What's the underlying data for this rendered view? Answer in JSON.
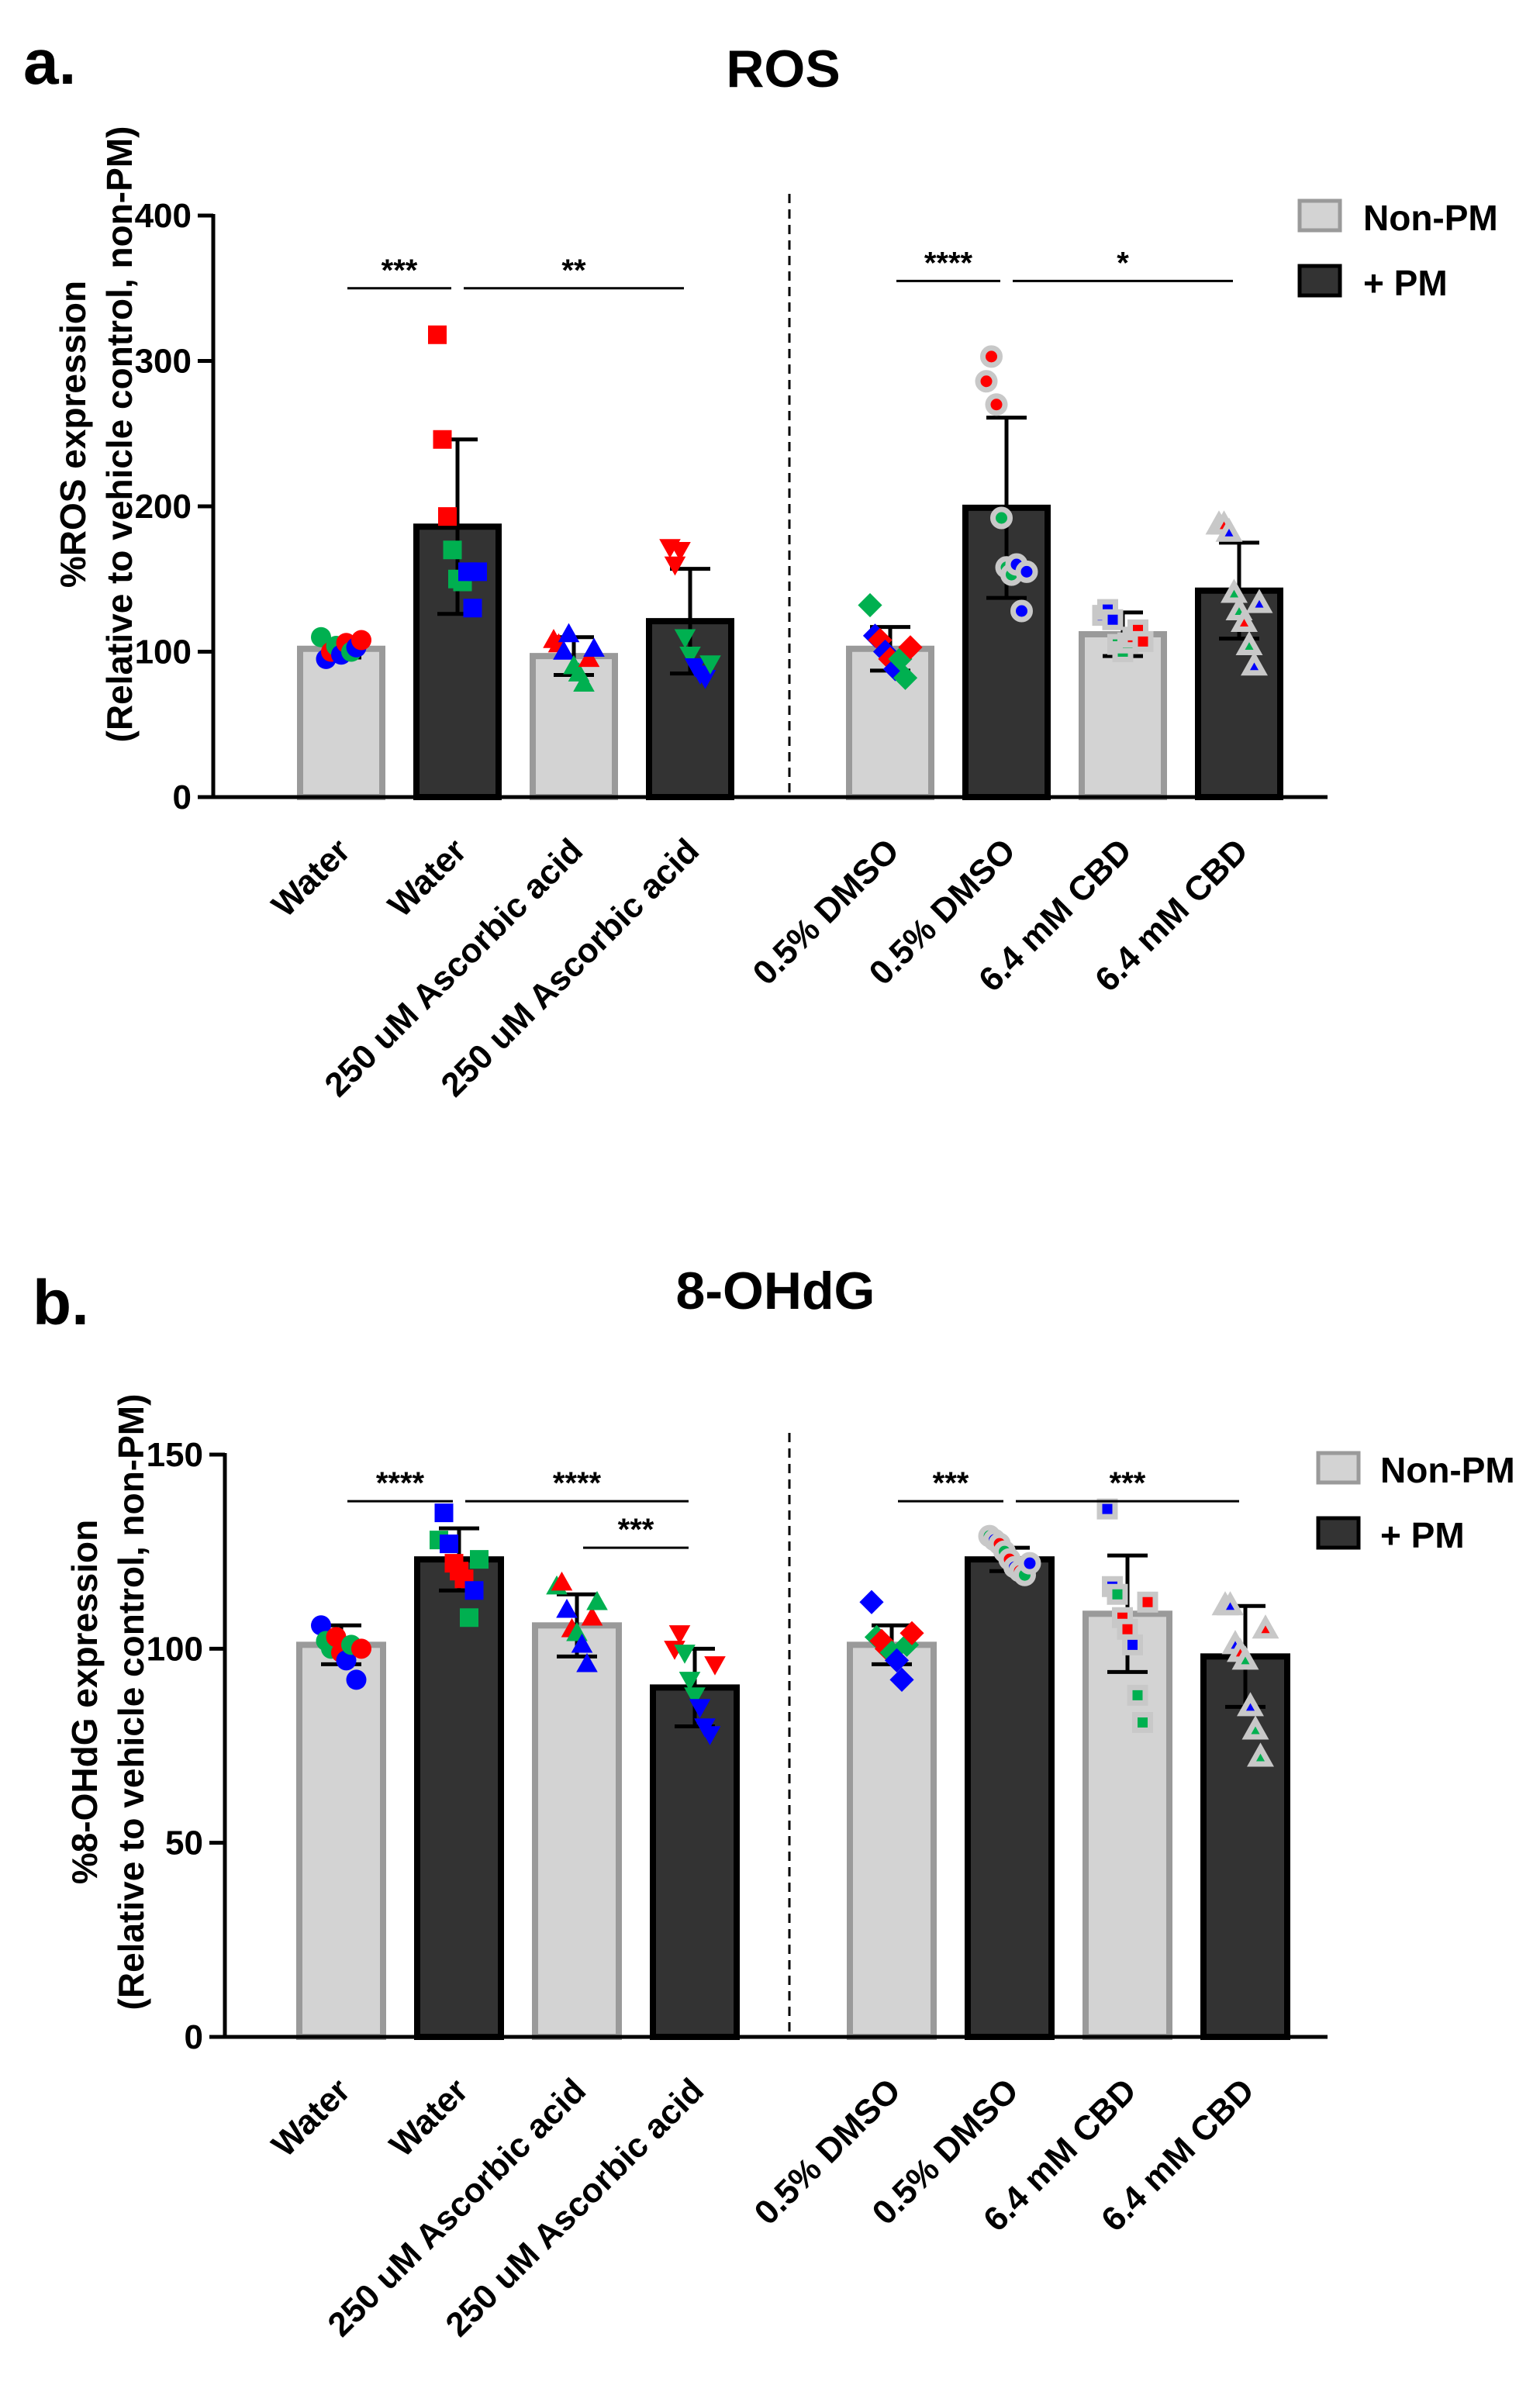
{
  "chart_data": [
    {
      "type": "bar",
      "panel_letter": "a.",
      "title": "ROS",
      "ylabel_line1": "%ROS expression",
      "ylabel_line2": "(Relative to vehicle control, non-PM)",
      "ylim": [
        0,
        400
      ],
      "yticks": [
        0,
        100,
        200,
        300,
        400
      ],
      "categories": [
        "Water",
        "Water",
        "250 uM Ascorbic acid",
        "250 uM Ascorbic acid",
        "0.5% DMSO",
        "0.5% DMSO",
        "6.4 mM CBD",
        "6.4 mM CBD"
      ],
      "groups": [
        "Non-PM",
        "+ PM",
        "Non-PM",
        "+ PM",
        "Non-PM",
        "+ PM",
        "Non-PM",
        "+ PM"
      ],
      "values": [
        102,
        186,
        97,
        121,
        102,
        199,
        112,
        142
      ],
      "errors": [
        6,
        60,
        13,
        36,
        15,
        62,
        15,
        33
      ],
      "points": [
        {
          "shape": "circle",
          "style": "plain",
          "pts": [
            [
              110,
              "#00b050"
            ],
            [
              95,
              "#0000ff"
            ],
            [
              100,
              "#ff0000"
            ],
            [
              104,
              "#00b050"
            ],
            [
              98,
              "#0000ff"
            ],
            [
              106,
              "#ff0000"
            ],
            [
              100,
              "#00b050"
            ],
            [
              103,
              "#0000ff"
            ],
            [
              108,
              "#ff0000"
            ]
          ]
        },
        {
          "shape": "square",
          "style": "plain",
          "pts": [
            [
              318,
              "#ff0000"
            ],
            [
              246,
              "#ff0000"
            ],
            [
              193,
              "#ff0000"
            ],
            [
              170,
              "#00b050"
            ],
            [
              150,
              "#00b050"
            ],
            [
              148,
              "#00b050"
            ],
            [
              155,
              "#0000ff"
            ],
            [
              130,
              "#0000ff"
            ],
            [
              155,
              "#0000ff"
            ]
          ]
        },
        {
          "shape": "triangle-up",
          "style": "plain",
          "pts": [
            [
              108,
              "#ff0000"
            ],
            [
              105,
              "#ff0000"
            ],
            [
              100,
              "#0000ff"
            ],
            [
              112,
              "#0000ff"
            ],
            [
              90,
              "#00b050"
            ],
            [
              85,
              "#00b050"
            ],
            [
              78,
              "#00b050"
            ],
            [
              95,
              "#ff0000"
            ],
            [
              102,
              "#0000ff"
            ]
          ]
        },
        {
          "shape": "triangle-down",
          "style": "plain",
          "pts": [
            [
              172,
              "#ff0000"
            ],
            [
              160,
              "#ff0000"
            ],
            [
              170,
              "#ff0000"
            ],
            [
              110,
              "#00b050"
            ],
            [
              98,
              "#00b050"
            ],
            [
              90,
              "#0000ff"
            ],
            [
              85,
              "#0000ff"
            ],
            [
              82,
              "#0000ff"
            ],
            [
              92,
              "#00b050"
            ]
          ]
        },
        {
          "shape": "diamond",
          "style": "plain",
          "pts": [
            [
              132,
              "#00b050"
            ],
            [
              111,
              "#0000ff"
            ],
            [
              108,
              "#ff0000"
            ],
            [
              100,
              "#0000ff"
            ],
            [
              95,
              "#ff0000"
            ],
            [
              88,
              "#0000ff"
            ],
            [
              95,
              "#00b050"
            ],
            [
              82,
              "#00b050"
            ],
            [
              103,
              "#ff0000"
            ]
          ]
        },
        {
          "shape": "circle",
          "style": "halo",
          "pts": [
            [
              286,
              "#ff0000"
            ],
            [
              303,
              "#ff0000"
            ],
            [
              270,
              "#ff0000"
            ],
            [
              192,
              "#00b050"
            ],
            [
              158,
              "#00b050"
            ],
            [
              153,
              "#00b050"
            ],
            [
              160,
              "#0000ff"
            ],
            [
              128,
              "#0000ff"
            ],
            [
              155,
              "#0000ff"
            ]
          ]
        },
        {
          "shape": "square",
          "style": "halo",
          "pts": [
            [
              125,
              "#0000ff"
            ],
            [
              129,
              "#0000ff"
            ],
            [
              122,
              "#0000ff"
            ],
            [
              105,
              "#00b050"
            ],
            [
              100,
              "#00b050"
            ],
            [
              106,
              "#00b050"
            ],
            [
              110,
              "#ff0000"
            ],
            [
              115,
              "#ff0000"
            ],
            [
              107,
              "#ff0000"
            ]
          ]
        },
        {
          "shape": "triangle-up",
          "style": "halo",
          "pts": [
            [
              187,
              "#ff0000"
            ],
            [
              187,
              "#ff0000"
            ],
            [
              182,
              "#0000ff"
            ],
            [
              140,
              "#00b050"
            ],
            [
              128,
              "#00b050"
            ],
            [
              120,
              "#ff0000"
            ],
            [
              104,
              "#00b050"
            ],
            [
              90,
              "#0000ff"
            ],
            [
              133,
              "#0000ff"
            ]
          ]
        }
      ],
      "significance": [
        {
          "from": 0,
          "to": 1,
          "label": "***",
          "y": 350
        },
        {
          "from": 1,
          "to": 3,
          "label": "**",
          "y": 350
        },
        {
          "from": 4,
          "to": 5,
          "label": "****",
          "y": 355
        },
        {
          "from": 5,
          "to": 7,
          "label": "*",
          "y": 355
        }
      ],
      "legend": [
        {
          "label": "Non-PM",
          "color": "#d3d3d3"
        },
        {
          "label": "+ PM",
          "color": "#333333"
        }
      ],
      "legend_position": "top-right"
    },
    {
      "type": "bar",
      "panel_letter": "b.",
      "title": "8-OHdG",
      "ylabel_line1": "%8-OHdG expression",
      "ylabel_line2": "(Relative to vehicle control, non-PM)",
      "ylim": [
        0,
        150
      ],
      "yticks": [
        0,
        50,
        100,
        150
      ],
      "categories": [
        "Water",
        "Water",
        "250 uM Ascorbic acid",
        "250 uM Ascorbic acid",
        "0.5% DMSO",
        "0.5% DMSO",
        "6.4 mM CBD",
        "6.4 mM CBD"
      ],
      "groups": [
        "Non-PM",
        "+ PM",
        "Non-PM",
        "+ PM",
        "Non-PM",
        "+ PM",
        "Non-PM",
        "+ PM"
      ],
      "values": [
        101,
        123,
        106,
        90,
        101,
        123,
        109,
        98
      ],
      "errors": [
        5,
        8,
        8,
        10,
        5,
        3,
        15,
        13
      ],
      "points": [
        {
          "shape": "circle",
          "style": "plain",
          "pts": [
            [
              106,
              "#0000ff"
            ],
            [
              102,
              "#00b050"
            ],
            [
              100,
              "#00b050"
            ],
            [
              103,
              "#ff0000"
            ],
            [
              99,
              "#ff0000"
            ],
            [
              97,
              "#0000ff"
            ],
            [
              101,
              "#00b050"
            ],
            [
              92,
              "#0000ff"
            ],
            [
              100,
              "#ff0000"
            ]
          ]
        },
        {
          "shape": "square",
          "style": "plain",
          "pts": [
            [
              128,
              "#00b050"
            ],
            [
              135,
              "#0000ff"
            ],
            [
              127,
              "#0000ff"
            ],
            [
              122,
              "#ff0000"
            ],
            [
              120,
              "#ff0000"
            ],
            [
              118,
              "#ff0000"
            ],
            [
              108,
              "#00b050"
            ],
            [
              115,
              "#0000ff"
            ],
            [
              123,
              "#00b050"
            ]
          ]
        },
        {
          "shape": "triangle-up",
          "style": "plain",
          "pts": [
            [
              116,
              "#00b050"
            ],
            [
              117,
              "#ff0000"
            ],
            [
              110,
              "#0000ff"
            ],
            [
              105,
              "#ff0000"
            ],
            [
              104,
              "#00b050"
            ],
            [
              101,
              "#0000ff"
            ],
            [
              96,
              "#0000ff"
            ],
            [
              108,
              "#ff0000"
            ],
            [
              112,
              "#00b050"
            ]
          ]
        },
        {
          "shape": "triangle-down",
          "style": "plain",
          "pts": [
            [
              100,
              "#ff0000"
            ],
            [
              104,
              "#ff0000"
            ],
            [
              99,
              "#00b050"
            ],
            [
              92,
              "#00b050"
            ],
            [
              88,
              "#00b050"
            ],
            [
              85,
              "#0000ff"
            ],
            [
              80,
              "#0000ff"
            ],
            [
              78,
              "#0000ff"
            ],
            [
              96,
              "#ff0000"
            ]
          ]
        },
        {
          "shape": "diamond",
          "style": "plain",
          "pts": [
            [
              112,
              "#0000ff"
            ],
            [
              103,
              "#00b050"
            ],
            [
              102,
              "#ff0000"
            ],
            [
              100,
              "#ff0000"
            ],
            [
              99,
              "#00b050"
            ],
            [
              97,
              "#0000ff"
            ],
            [
              92,
              "#0000ff"
            ],
            [
              101,
              "#00b050"
            ],
            [
              104,
              "#ff0000"
            ]
          ]
        },
        {
          "shape": "circle",
          "style": "halo",
          "pts": [
            [
              129,
              "#00b050"
            ],
            [
              128,
              "#0000ff"
            ],
            [
              127,
              "#ff0000"
            ],
            [
              125,
              "#00b050"
            ],
            [
              123,
              "#ff0000"
            ],
            [
              121,
              "#0000ff"
            ],
            [
              120,
              "#ff0000"
            ],
            [
              119,
              "#00b050"
            ],
            [
              122,
              "#0000ff"
            ]
          ]
        },
        {
          "shape": "square",
          "style": "halo",
          "pts": [
            [
              136,
              "#0000ff"
            ],
            [
              116,
              "#0000ff"
            ],
            [
              114,
              "#00b050"
            ],
            [
              108,
              "#ff0000"
            ],
            [
              105,
              "#ff0000"
            ],
            [
              101,
              "#0000ff"
            ],
            [
              88,
              "#00b050"
            ],
            [
              81,
              "#00b050"
            ],
            [
              112,
              "#ff0000"
            ]
          ]
        },
        {
          "shape": "triangle-up",
          "style": "halo",
          "pts": [
            [
              111,
              "#ff0000"
            ],
            [
              111,
              "#0000ff"
            ],
            [
              101,
              "#0000ff"
            ],
            [
              99,
              "#ff0000"
            ],
            [
              97,
              "#00b050"
            ],
            [
              85,
              "#0000ff"
            ],
            [
              79,
              "#00b050"
            ],
            [
              72,
              "#00b050"
            ],
            [
              105,
              "#ff0000"
            ]
          ]
        }
      ],
      "significance": [
        {
          "from": 0,
          "to": 1,
          "label": "****",
          "y": 138
        },
        {
          "from": 1,
          "to": 3,
          "label": "****",
          "y": 138
        },
        {
          "from": 2,
          "to": 3,
          "label": "***",
          "y": 126
        },
        {
          "from": 4,
          "to": 5,
          "label": "***",
          "y": 138
        },
        {
          "from": 5,
          "to": 7,
          "label": "***",
          "y": 138
        }
      ],
      "legend": [
        {
          "label": "Non-PM",
          "color": "#d3d3d3"
        },
        {
          "label": "+ PM",
          "color": "#333333"
        }
      ],
      "legend_position": "top-right"
    }
  ]
}
